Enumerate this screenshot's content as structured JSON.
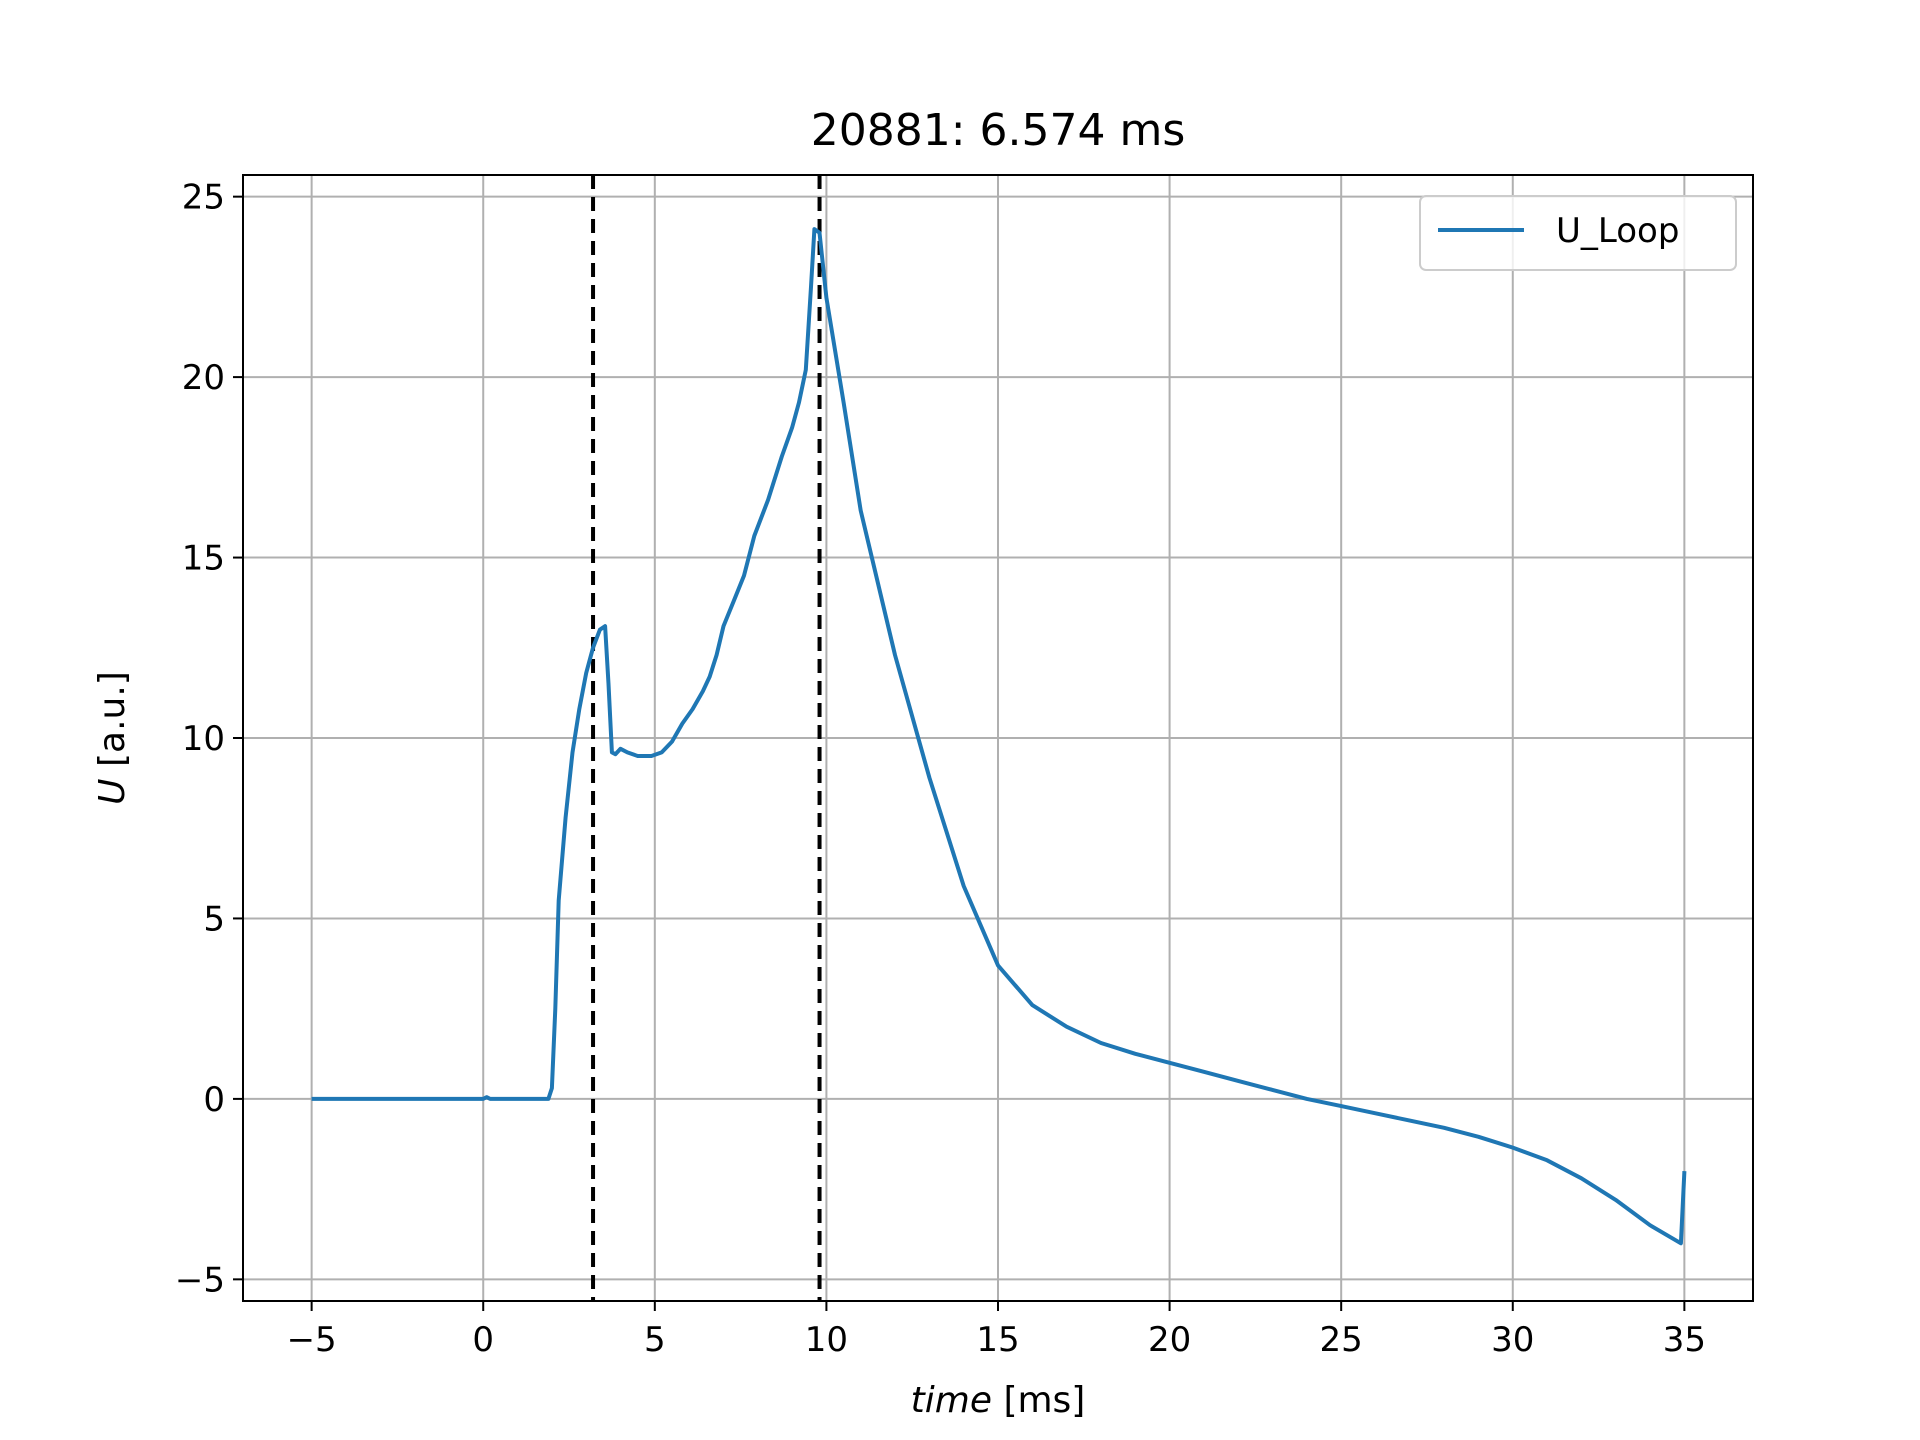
{
  "chart_data": {
    "type": "line",
    "title": "20881: 6.574 ms",
    "xlabel_italic": "time",
    "xlabel_unit": "[ms]",
    "ylabel_italic": "U",
    "ylabel_unit": "[a.u.]",
    "xlim": [
      -7,
      37
    ],
    "ylim": [
      -5.6,
      25.6
    ],
    "xticks": [
      -5,
      0,
      5,
      10,
      15,
      20,
      25,
      30,
      35
    ],
    "yticks": [
      -5,
      0,
      5,
      10,
      15,
      20,
      25
    ],
    "grid": true,
    "legend_position": "top-right",
    "vlines": [
      3.2,
      9.8
    ],
    "series": [
      {
        "name": "U_Loop",
        "color": "#1f77b4",
        "x": [
          -5,
          0,
          0.1,
          0.2,
          1.9,
          2.0,
          2.1,
          2.2,
          2.4,
          2.6,
          2.8,
          3.0,
          3.2,
          3.4,
          3.55,
          3.65,
          3.75,
          3.85,
          4.0,
          4.2,
          4.5,
          4.9,
          5.2,
          5.5,
          5.8,
          6.1,
          6.4,
          6.6,
          6.8,
          7.0,
          7.3,
          7.6,
          7.9,
          8.3,
          8.7,
          9.0,
          9.2,
          9.4,
          9.55,
          9.65,
          9.8,
          10.0,
          10.5,
          11.0,
          12.0,
          13.0,
          14.0,
          15.0,
          16.0,
          17.0,
          18.0,
          19.0,
          20.0,
          21.0,
          22.0,
          23.0,
          24.0,
          25.0,
          26.0,
          27.0,
          28.0,
          29.0,
          30.0,
          31.0,
          32.0,
          33.0,
          34.0,
          34.9,
          35.0
        ],
        "y": [
          0,
          0,
          0.05,
          0,
          0,
          0.3,
          2.5,
          5.5,
          7.8,
          9.6,
          10.8,
          11.8,
          12.5,
          13.0,
          13.1,
          11.5,
          9.6,
          9.55,
          9.7,
          9.6,
          9.5,
          9.5,
          9.6,
          9.9,
          10.4,
          10.8,
          11.3,
          11.7,
          12.3,
          13.1,
          13.8,
          14.5,
          15.6,
          16.6,
          17.8,
          18.6,
          19.3,
          20.2,
          22.5,
          24.1,
          24.0,
          22.2,
          19.3,
          16.3,
          12.3,
          8.9,
          5.9,
          3.7,
          2.6,
          2.0,
          1.55,
          1.25,
          1.0,
          0.75,
          0.5,
          0.25,
          0.0,
          -0.2,
          -0.4,
          -0.6,
          -0.8,
          -1.05,
          -1.35,
          -1.7,
          -2.2,
          -2.8,
          -3.5,
          -4.0,
          -2.0
        ]
      }
    ]
  }
}
